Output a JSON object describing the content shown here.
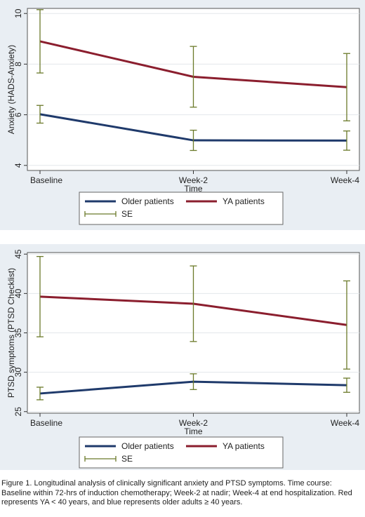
{
  "chart_data": [
    {
      "type": "line",
      "xlabel": "Time",
      "ylabel": "Anxiety (HADS-Anxiety)",
      "categories": [
        "Baseline",
        "Week-2",
        "Week-4"
      ],
      "ylim": [
        3.8,
        10.2
      ],
      "yticks": [
        "4",
        "6",
        "8",
        "10"
      ],
      "grid": true,
      "series": [
        {
          "name": "Older patients",
          "color": "#1f3a6b",
          "values": [
            6.02,
            4.99,
            4.98
          ],
          "se": [
            0.35,
            0.4,
            0.38
          ]
        },
        {
          "name": "YA patients",
          "color": "#8b1e2e",
          "values": [
            8.9,
            7.5,
            7.09
          ],
          "se": [
            1.25,
            1.2,
            1.33
          ]
        }
      ],
      "se_label": "SE",
      "se_color": "#6b7a2a",
      "legend_position": "bottom"
    },
    {
      "type": "line",
      "xlabel": "Time",
      "ylabel": "PTSD symptoms (PTSD Checklist)",
      "categories": [
        "Baseline",
        "Week-2",
        "Week-4"
      ],
      "ylim": [
        24.8,
        45.2
      ],
      "yticks": [
        "25",
        "30",
        "35",
        "40",
        "45"
      ],
      "grid": true,
      "series": [
        {
          "name": "Older patients",
          "color": "#1f3a6b",
          "values": [
            27.3,
            28.8,
            28.35
          ],
          "se": [
            0.8,
            1.0,
            0.9
          ]
        },
        {
          "name": "YA patients",
          "color": "#8b1e2e",
          "values": [
            39.6,
            38.7,
            36.0
          ],
          "se": [
            5.1,
            4.8,
            5.6
          ]
        }
      ],
      "se_label": "SE",
      "se_color": "#6b7a2a",
      "legend_position": "bottom"
    }
  ],
  "caption": "Figure 1. Longitudinal analysis of clinically significant anxiety and PTSD symptoms. Time course: Baseline within 72-hrs of induction chemotherapy; Week-2 at nadir; Week-4 at end hospitalization. Red represents YA < 40 years, and blue represents older adults ≥ 40 years."
}
